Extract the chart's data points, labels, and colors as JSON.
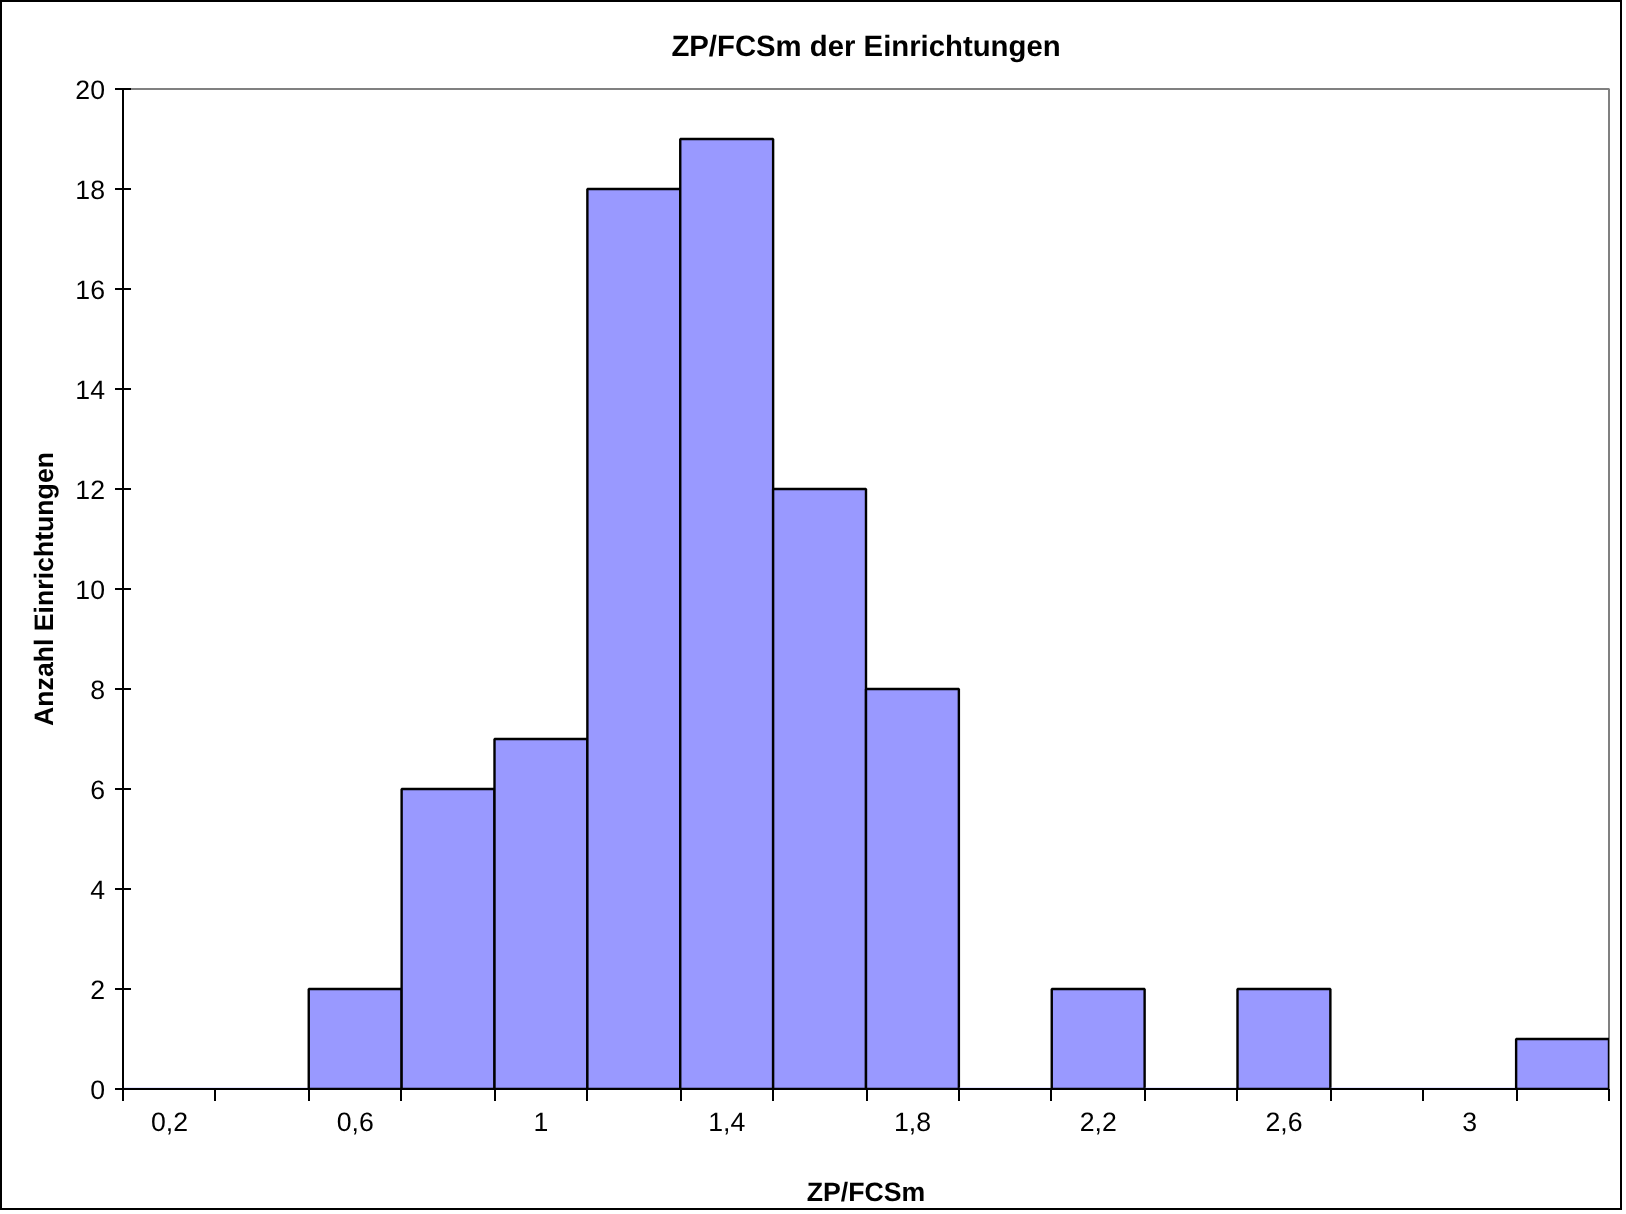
{
  "chart_data": {
    "type": "bar",
    "title": "ZP/FCSm der Einrichtungen",
    "xlabel": "ZP/FCSm",
    "ylabel": "Anzahl Einrichtungen",
    "categories": [
      "0,2",
      null,
      "0,6",
      null,
      "1",
      null,
      "1,4",
      null,
      "1,8",
      null,
      "2,2",
      null,
      "2,6",
      null,
      "3",
      null
    ],
    "values": [
      0,
      0,
      2,
      6,
      7,
      18,
      19,
      12,
      8,
      0,
      2,
      0,
      2,
      0,
      0,
      1
    ],
    "color": "#9999ff",
    "ylim": [
      0,
      20
    ],
    "yticks": [
      0,
      2,
      4,
      6,
      8,
      10,
      12,
      14,
      16,
      18,
      20
    ],
    "grid": false
  }
}
